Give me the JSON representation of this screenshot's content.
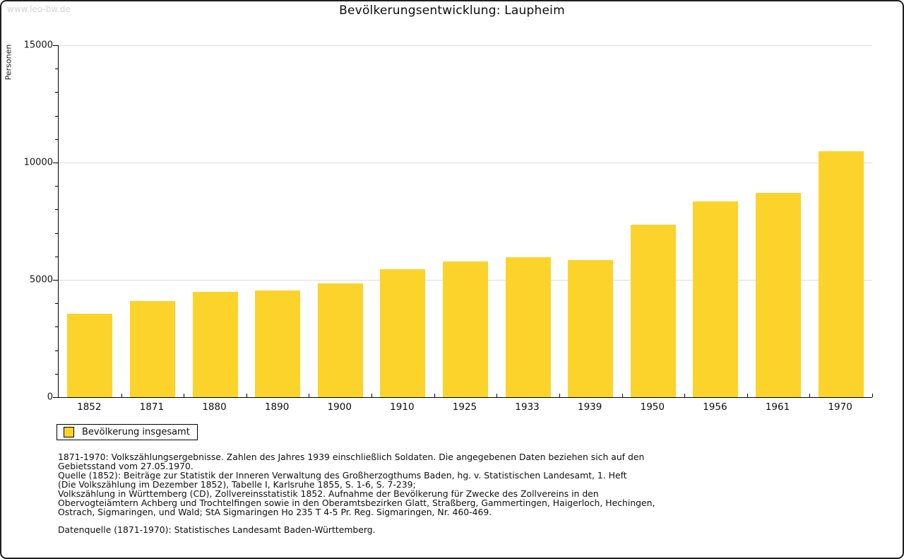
{
  "watermark": "www.leo-bw.de",
  "title": "Bevölkerungsentwicklung: Laupheim",
  "colors": {
    "bar": "#FCD32B",
    "grid": "#DCDCDC",
    "axis": "#000000",
    "watermark": "#D4D4D4",
    "page_border": "#1F1F1F"
  },
  "chart_data": {
    "type": "bar",
    "title": "Bevölkerungsentwicklung: Laupheim",
    "categories": [
      "1852",
      "1871",
      "1880",
      "1890",
      "1900",
      "1910",
      "1925",
      "1933",
      "1939",
      "1950",
      "1956",
      "1961",
      "1970"
    ],
    "series": [
      {
        "name": "Bevölkerung insgesamt",
        "values": [
          3550,
          4100,
          4500,
          4540,
          4840,
          5440,
          5780,
          5960,
          5850,
          7360,
          8330,
          8710,
          10480
        ]
      }
    ],
    "xlabel": "",
    "ylabel": "Personen",
    "ylim": [
      0,
      15000
    ],
    "y_major_ticks": [
      0,
      5000,
      10000,
      15000
    ],
    "y_minor_step": 1000,
    "grid": "horizontal-major-only",
    "legend_position": "bottom-left",
    "bar_color": "#FCD32B"
  },
  "legend": {
    "items": [
      {
        "label": "Bevölkerung insgesamt",
        "color": "#FCD32B"
      }
    ]
  },
  "notes": {
    "lines": [
      "1871-1970: Volkszählungsergebnisse. Zahlen des Jahres 1939 einschließlich Soldaten. Die angegebenen Daten beziehen sich auf den",
      "Gebietsstand vom 27.05.1970.",
      "Quelle (1852): Beiträge zur Statistik der Inneren Verwaltung des Großherzogthums Baden, hg. v. Statistischen Landesamt, 1. Heft",
      "(Die Volkszählung im Dezember 1852), Tabelle I, Karlsruhe 1855, S. 1-6, S. 7-239;",
      "Volkszählung in Württemberg (CD), Zollvereinsstatistik 1852. Aufnahme der Bevölkerung für Zwecke des Zollvereins in den",
      "Obervogteiämtern Achberg und Trochtelfingen sowie in den Oberamtsbezirken Glatt, Straßberg, Gammertingen, Haigerloch, Hechingen,",
      "Ostrach, Sigmaringen, und Wald; StA Sigmaringen Ho 235 T 4-5 Pr. Reg. Sigmaringen, Nr. 460-469."
    ],
    "datasource": "Datenquelle (1871-1970): Statistisches Landesamt Baden-Württemberg."
  }
}
